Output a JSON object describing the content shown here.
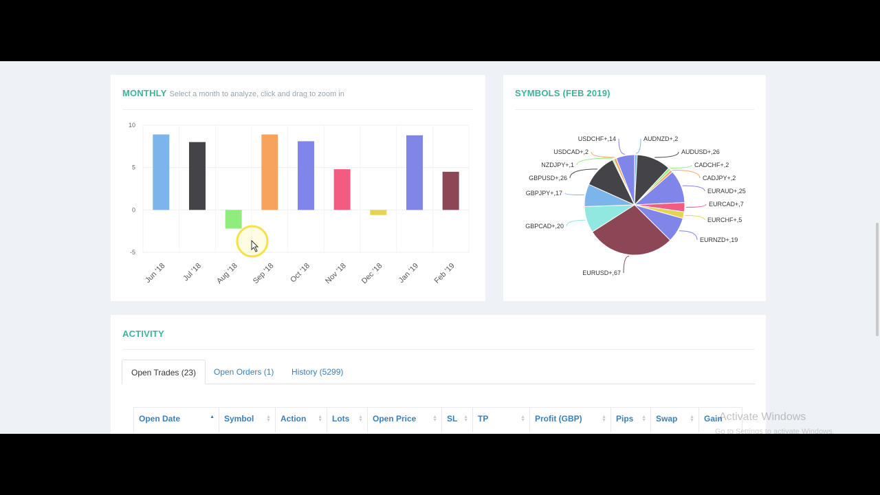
{
  "monthly": {
    "title": "MONTHLY",
    "subtitle": "Select a month to analyze, click and drag to zoom in"
  },
  "symbols": {
    "title": "SYMBOLS (FEB 2019)"
  },
  "activity": {
    "title": "ACTIVITY",
    "tabs": [
      {
        "label": "Open Trades (23)",
        "active": true
      },
      {
        "label": "Open Orders (1)",
        "active": false
      },
      {
        "label": "History (5299)",
        "active": false
      }
    ],
    "columns": [
      "Open Date",
      "Symbol",
      "Action",
      "Lots",
      "Open Price",
      "SL",
      "TP",
      "Profit (GBP)",
      "Pips",
      "Swap",
      "Gain"
    ]
  },
  "watermark": {
    "line1": "Activate Windows",
    "line2": "Go to Settings to activate Windows."
  },
  "chart_data": [
    {
      "type": "bar",
      "categories": [
        "Jun '18",
        "Jul '18",
        "Aug '18",
        "Sep '18",
        "Oct '18",
        "Nov '18",
        "Dec '18",
        "Jan '19",
        "Feb '19"
      ],
      "values": [
        8.9,
        8.0,
        -2.2,
        8.9,
        8.1,
        4.8,
        -0.6,
        8.8,
        4.5
      ],
      "colors": [
        "#7cb5ec",
        "#434348",
        "#90ed7d",
        "#f7a35c",
        "#8085e9",
        "#f15c80",
        "#e4d354",
        "#8085e8",
        "#8d4653"
      ],
      "ylim": [
        -5,
        10
      ],
      "yticks": [
        10,
        5,
        0,
        -5
      ],
      "grid": true
    },
    {
      "type": "pie",
      "labels": [
        "AUDNZD+",
        "AUDUSD+",
        "CADCHF+",
        "CADJPY+",
        "EURAUD+",
        "EURCAD+",
        "EURCHF+",
        "EURNZD+",
        "EURUSD+",
        "GBPCAD+",
        "GBPJPY+",
        "GBPUSD+",
        "NZDJPY+",
        "USDCAD+",
        "USDCHF+"
      ],
      "values": [
        2,
        26,
        2,
        2,
        25,
        7,
        5,
        19,
        67,
        20,
        17,
        26,
        1,
        2,
        14
      ],
      "colors": [
        "#7cb5ec",
        "#434348",
        "#90ed7d",
        "#f7a35c",
        "#8085e9",
        "#f15c80",
        "#e4d354",
        "#8085e8",
        "#8d4653",
        "#91e8e1",
        "#7cb5ec",
        "#434348",
        "#90ed7d",
        "#f7a35c",
        "#8085e9"
      ]
    }
  ]
}
